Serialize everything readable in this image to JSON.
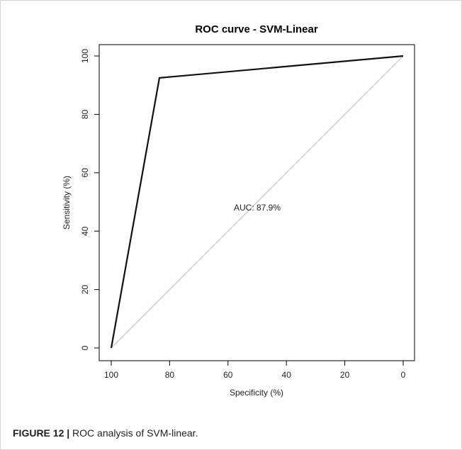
{
  "chart_data": {
    "type": "line",
    "title": "ROC curve - SVM-Linear",
    "xlabel": "Specificity (%)",
    "ylabel": "Sensitivity (%)",
    "xlim": [
      100,
      0
    ],
    "ylim": [
      0,
      100
    ],
    "x_reversed": true,
    "x_ticks": [
      100,
      80,
      60,
      40,
      20,
      0
    ],
    "y_ticks": [
      0,
      20,
      40,
      60,
      80,
      100
    ],
    "grid": false,
    "series": [
      {
        "points": [
          {
            "specificity": 100,
            "sensitivity": 0
          },
          {
            "specificity": 83.5,
            "sensitivity": 92.5
          },
          {
            "specificity": 0,
            "sensitivity": 100
          }
        ],
        "color": "#111111"
      }
    ],
    "reference_line": {
      "points": [
        {
          "specificity": 100,
          "sensitivity": 0
        },
        {
          "specificity": 0,
          "sensitivity": 100
        }
      ],
      "color": "#bdbdbd"
    },
    "annotation": {
      "text": "AUC: 87.9%",
      "specificity": 50,
      "sensitivity": 48
    }
  },
  "caption": {
    "label": "FIGURE 12 |",
    "text": " ROC analysis of SVM-linear."
  }
}
